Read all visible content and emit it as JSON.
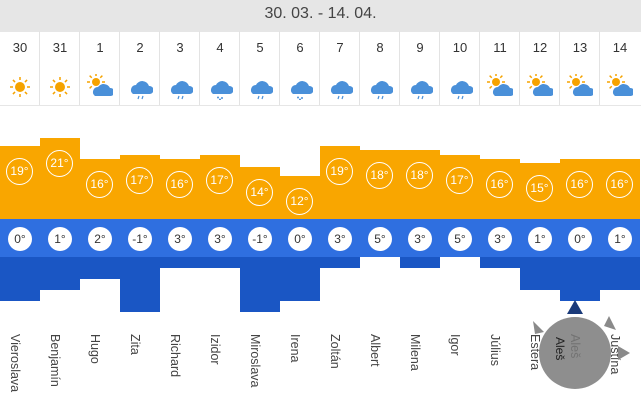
{
  "header": {
    "range": "30. 03. - 14. 04."
  },
  "days": [
    {
      "day": "30",
      "icon": "sun-icon",
      "high": "19°",
      "low": "0°",
      "name": "Vieroslava"
    },
    {
      "day": "31",
      "icon": "sun-icon",
      "high": "21°",
      "low": "1°",
      "name": "Benjamín"
    },
    {
      "day": "1",
      "icon": "sun-cloud-icon",
      "high": "16°",
      "low": "2°",
      "name": "Hugo"
    },
    {
      "day": "2",
      "icon": "cloud-rain-icon",
      "high": "17°",
      "low": "-1°",
      "name": "Zita"
    },
    {
      "day": "3",
      "icon": "cloud-rain-icon",
      "high": "16°",
      "low": "3°",
      "name": "Richard"
    },
    {
      "day": "4",
      "icon": "cloud-snow-icon",
      "high": "17°",
      "low": "3°",
      "name": "Izidor"
    },
    {
      "day": "5",
      "icon": "cloud-rain-icon",
      "high": "14°",
      "low": "-1°",
      "name": "Miroslava"
    },
    {
      "day": "6",
      "icon": "cloud-snow-icon",
      "high": "12°",
      "low": "0°",
      "name": "Irena"
    },
    {
      "day": "7",
      "icon": "cloud-rain-icon",
      "high": "19°",
      "low": "3°",
      "name": "Zoltán"
    },
    {
      "day": "8",
      "icon": "cloud-rain-icon",
      "high": "18°",
      "low": "5°",
      "name": "Albert"
    },
    {
      "day": "9",
      "icon": "cloud-rain-icon",
      "high": "18°",
      "low": "3°",
      "name": "Milena"
    },
    {
      "day": "10",
      "icon": "cloud-rain-icon",
      "high": "17°",
      "low": "5°",
      "name": "Igor"
    },
    {
      "day": "11",
      "icon": "sun-cloud-icon",
      "high": "16°",
      "low": "3°",
      "name": "Július"
    },
    {
      "day": "12",
      "icon": "sun-cloud-icon",
      "high": "15°",
      "low": "1°",
      "name": "Estera"
    },
    {
      "day": "13",
      "icon": "sun-cloud-icon",
      "high": "16°",
      "low": "0°",
      "name": "Aleš"
    },
    {
      "day": "14",
      "icon": "sun-cloud-icon",
      "high": "16°",
      "low": "1°",
      "name": "Justína"
    }
  ],
  "overlay": {
    "name": "Aleš"
  },
  "colors": {
    "high": "#f9a600",
    "low": "#1a56c4",
    "sun": "#f5a300",
    "cloud": "#4a90d9"
  }
}
